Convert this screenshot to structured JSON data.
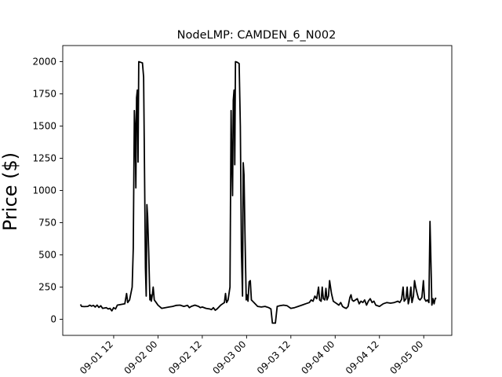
{
  "chart_data": {
    "type": "line",
    "title": "NodeLMP: CAMDEN_6_N002",
    "xlabel": "",
    "ylabel": "Price ($)",
    "ylim": [
      -125,
      2125
    ],
    "yticks": [
      0,
      250,
      500,
      750,
      1000,
      1250,
      1500,
      1750,
      2000
    ],
    "xticks": [
      "09-01 12",
      "09-02 00",
      "09-02 12",
      "09-03 00",
      "09-03 12",
      "09-04 00",
      "09-04 12",
      "09-05 00"
    ],
    "xtick_hours": [
      12,
      24,
      36,
      48,
      60,
      72,
      84,
      96
    ],
    "xlim_hours": [
      -1.8,
      103.6
    ],
    "x_unit": "hours after 09-01 00",
    "grid": false,
    "series": [
      {
        "color": "#000000",
        "points": [
          [
            3.0,
            115
          ],
          [
            3.3,
            100
          ],
          [
            4.0,
            98
          ],
          [
            5.0,
            100
          ],
          [
            5.5,
            110
          ],
          [
            6.0,
            102
          ],
          [
            6.5,
            108
          ],
          [
            7.0,
            95
          ],
          [
            7.5,
            110
          ],
          [
            8.0,
            92
          ],
          [
            8.5,
            105
          ],
          [
            9.0,
            85
          ],
          [
            10.0,
            90
          ],
          [
            10.5,
            80
          ],
          [
            11.0,
            85
          ],
          [
            11.5,
            65
          ],
          [
            12.0,
            90
          ],
          [
            12.5,
            80
          ],
          [
            13.0,
            110
          ],
          [
            14.0,
            115
          ],
          [
            15.0,
            120
          ],
          [
            15.5,
            200
          ],
          [
            15.8,
            130
          ],
          [
            16.3,
            150
          ],
          [
            17.0,
            250
          ],
          [
            17.3,
            550
          ],
          [
            17.6,
            1620
          ],
          [
            17.8,
            1500
          ],
          [
            18.0,
            1020
          ],
          [
            18.2,
            1720
          ],
          [
            18.4,
            1780
          ],
          [
            18.6,
            1220
          ],
          [
            18.8,
            2000
          ],
          [
            19.3,
            1995
          ],
          [
            19.8,
            1990
          ],
          [
            20.1,
            1880
          ],
          [
            20.3,
            1320
          ],
          [
            20.6,
            400
          ],
          [
            20.8,
            180
          ],
          [
            21.0,
            890
          ],
          [
            21.2,
            800
          ],
          [
            21.5,
            520
          ],
          [
            21.8,
            150
          ],
          [
            22.0,
            190
          ],
          [
            22.2,
            140
          ],
          [
            22.5,
            200
          ],
          [
            22.7,
            250
          ],
          [
            23.0,
            150
          ],
          [
            23.5,
            130
          ],
          [
            24.0,
            110
          ],
          [
            25.0,
            85
          ],
          [
            26.0,
            90
          ],
          [
            27.0,
            95
          ],
          [
            28.0,
            100
          ],
          [
            29.0,
            108
          ],
          [
            30.0,
            110
          ],
          [
            31.0,
            100
          ],
          [
            32.0,
            108
          ],
          [
            32.5,
            90
          ],
          [
            33.0,
            100
          ],
          [
            34.0,
            110
          ],
          [
            35.0,
            100
          ],
          [
            35.5,
            90
          ],
          [
            36.0,
            95
          ],
          [
            37.0,
            85
          ],
          [
            38.0,
            80
          ],
          [
            38.5,
            75
          ],
          [
            39.0,
            90
          ],
          [
            39.5,
            70
          ],
          [
            40.0,
            80
          ],
          [
            41.0,
            110
          ],
          [
            41.5,
            120
          ],
          [
            42.0,
            130
          ],
          [
            42.3,
            200
          ],
          [
            42.6,
            130
          ],
          [
            43.0,
            150
          ],
          [
            43.5,
            250
          ],
          [
            43.8,
            1620
          ],
          [
            44.0,
            1250
          ],
          [
            44.2,
            960
          ],
          [
            44.4,
            1700
          ],
          [
            44.6,
            1780
          ],
          [
            44.8,
            1200
          ],
          [
            45.0,
            2000
          ],
          [
            45.5,
            1995
          ],
          [
            46.0,
            1985
          ],
          [
            46.3,
            1500
          ],
          [
            46.6,
            530
          ],
          [
            46.9,
            180
          ],
          [
            47.1,
            1215
          ],
          [
            47.3,
            1120
          ],
          [
            47.6,
            600
          ],
          [
            47.9,
            150
          ],
          [
            48.1,
            190
          ],
          [
            48.4,
            140
          ],
          [
            48.7,
            290
          ],
          [
            49.0,
            300
          ],
          [
            49.3,
            150
          ],
          [
            50.0,
            130
          ],
          [
            51.0,
            100
          ],
          [
            52.0,
            95
          ],
          [
            53.0,
            100
          ],
          [
            54.0,
            90
          ],
          [
            54.6,
            80
          ],
          [
            55.0,
            -30
          ],
          [
            55.8,
            -30
          ],
          [
            56.3,
            100
          ],
          [
            57.0,
            105
          ],
          [
            58.0,
            110
          ],
          [
            59.0,
            105
          ],
          [
            60.0,
            85
          ],
          [
            61.0,
            90
          ],
          [
            62.0,
            100
          ],
          [
            63.0,
            110
          ],
          [
            64.0,
            120
          ],
          [
            65.0,
            130
          ],
          [
            65.5,
            150
          ],
          [
            66.0,
            140
          ],
          [
            66.5,
            180
          ],
          [
            67.0,
            160
          ],
          [
            67.5,
            250
          ],
          [
            67.8,
            150
          ],
          [
            68.2,
            140
          ],
          [
            68.5,
            250
          ],
          [
            68.8,
            160
          ],
          [
            69.2,
            150
          ],
          [
            69.5,
            240
          ],
          [
            69.8,
            150
          ],
          [
            70.2,
            180
          ],
          [
            70.5,
            300
          ],
          [
            71.0,
            200
          ],
          [
            71.5,
            140
          ],
          [
            72.0,
            130
          ],
          [
            72.5,
            120
          ],
          [
            73.0,
            110
          ],
          [
            73.5,
            130
          ],
          [
            74.0,
            100
          ],
          [
            74.5,
            90
          ],
          [
            75.0,
            85
          ],
          [
            75.5,
            100
          ],
          [
            76.0,
            170
          ],
          [
            76.3,
            190
          ],
          [
            76.6,
            150
          ],
          [
            77.0,
            140
          ],
          [
            77.5,
            150
          ],
          [
            78.0,
            160
          ],
          [
            78.5,
            120
          ],
          [
            79.0,
            140
          ],
          [
            79.5,
            130
          ],
          [
            80.0,
            150
          ],
          [
            80.5,
            110
          ],
          [
            81.0,
            140
          ],
          [
            81.5,
            160
          ],
          [
            82.0,
            130
          ],
          [
            82.5,
            140
          ],
          [
            83.0,
            110
          ],
          [
            84.0,
            100
          ],
          [
            85.0,
            120
          ],
          [
            86.0,
            130
          ],
          [
            87.0,
            125
          ],
          [
            88.0,
            130
          ],
          [
            89.0,
            140
          ],
          [
            89.5,
            130
          ],
          [
            90.0,
            155
          ],
          [
            90.4,
            250
          ],
          [
            90.7,
            140
          ],
          [
            91.2,
            160
          ],
          [
            91.5,
            250
          ],
          [
            91.8,
            120
          ],
          [
            92.2,
            170
          ],
          [
            92.5,
            250
          ],
          [
            92.8,
            130
          ],
          [
            93.2,
            180
          ],
          [
            93.5,
            300
          ],
          [
            93.8,
            250
          ],
          [
            94.2,
            200
          ],
          [
            94.6,
            160
          ],
          [
            95.0,
            150
          ],
          [
            95.5,
            170
          ],
          [
            95.9,
            300
          ],
          [
            96.2,
            160
          ],
          [
            96.6,
            140
          ],
          [
            97.0,
            150
          ],
          [
            97.4,
            130
          ],
          [
            97.7,
            760
          ],
          [
            97.9,
            500
          ],
          [
            98.2,
            110
          ],
          [
            98.5,
            160
          ],
          [
            98.8,
            120
          ],
          [
            99.1,
            160
          ],
          [
            99.4,
            165
          ]
        ]
      }
    ]
  }
}
